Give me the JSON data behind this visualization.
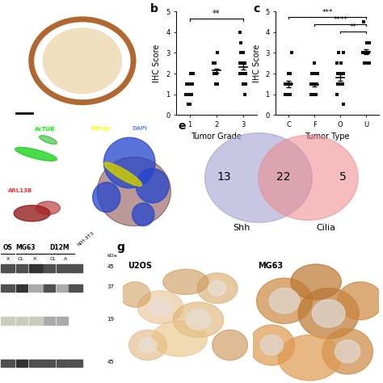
{
  "panel_b": {
    "xlabel": "Tumor Grade",
    "ylabel": "IHC Score",
    "xticks": [
      1,
      2,
      3
    ],
    "ylim": [
      0,
      5
    ],
    "group1": [
      1.5,
      1.0,
      1.0,
      0.5,
      1.5,
      1.5,
      1.0,
      0.5,
      1.0,
      1.5,
      1.5,
      2.0,
      1.0,
      1.5,
      1.5,
      1.0,
      1.0,
      0.5,
      1.5,
      1.0,
      1.0,
      2.0,
      1.5,
      1.0
    ],
    "group2": [
      2.0,
      2.5,
      2.0,
      1.5,
      2.0,
      2.5,
      2.0,
      1.5,
      2.5,
      2.0,
      3.0,
      2.0,
      2.5,
      2.0
    ],
    "group3": [
      1.5,
      2.0,
      2.5,
      3.0,
      2.0,
      1.5,
      2.5,
      3.5,
      4.0,
      2.0,
      2.5,
      3.0,
      1.5,
      2.0,
      2.5,
      1.5,
      2.0,
      3.0,
      2.5,
      2.5,
      2.0,
      1.0,
      2.0,
      3.0,
      2.5
    ],
    "signif_1_3": "**"
  },
  "panel_c": {
    "xlabel": "Tumor Type",
    "ylabel": "IHC Score",
    "xticks": [
      "C",
      "F",
      "O",
      "U"
    ],
    "ylim": [
      0,
      5
    ],
    "groupC": [
      1.5,
      1.5,
      1.0,
      1.0,
      2.0,
      1.5,
      1.5,
      2.0,
      1.0,
      1.5,
      1.0,
      3.0,
      1.0,
      1.5
    ],
    "groupF": [
      1.5,
      1.0,
      2.0,
      1.5,
      1.0,
      2.5,
      1.5,
      1.0,
      2.0,
      1.5,
      1.0,
      1.5,
      2.0,
      1.5,
      1.0,
      2.0,
      1.5,
      1.5,
      1.0,
      2.0,
      1.0,
      1.5,
      1.5,
      1.0,
      1.0,
      1.5
    ],
    "groupO": [
      2.0,
      1.5,
      1.5,
      2.0,
      2.5,
      0.5,
      0.5,
      1.0,
      2.0,
      1.5,
      3.0,
      2.5,
      3.0,
      1.5,
      2.5,
      2.0,
      1.5,
      2.0,
      1.5
    ],
    "groupU": [
      3.0,
      2.5,
      3.0,
      3.5,
      2.5,
      3.0,
      3.5,
      3.0,
      3.0,
      2.5,
      3.0,
      2.5,
      4.5,
      3.5,
      3.0,
      3.0
    ],
    "signif_C_U": "***",
    "signif_F_U": "****",
    "signif_O_U": "**"
  },
  "panel_e": {
    "shh_only": 13,
    "overlap": 22,
    "cilia_only": 5,
    "label_shh": "Shh",
    "label_cilia": "Cilia",
    "color_shh": "#9999cc",
    "color_cilia": "#ee8888"
  },
  "bg": "#ffffff",
  "dot_color": "#111111",
  "marker_size": 9,
  "font_size": 7,
  "label_fontsize": 9,
  "title_fontsize": 10,
  "panel_a_color": "#c8a070",
  "panel_a_inner": "#f0e0c0",
  "panel_d1_bg": "#000000",
  "panel_d2_bg": "#000000",
  "panel_d3_bg": "#050520",
  "panel_f_bg": "#e8e8d8",
  "panel_g_bg": "#c87840"
}
